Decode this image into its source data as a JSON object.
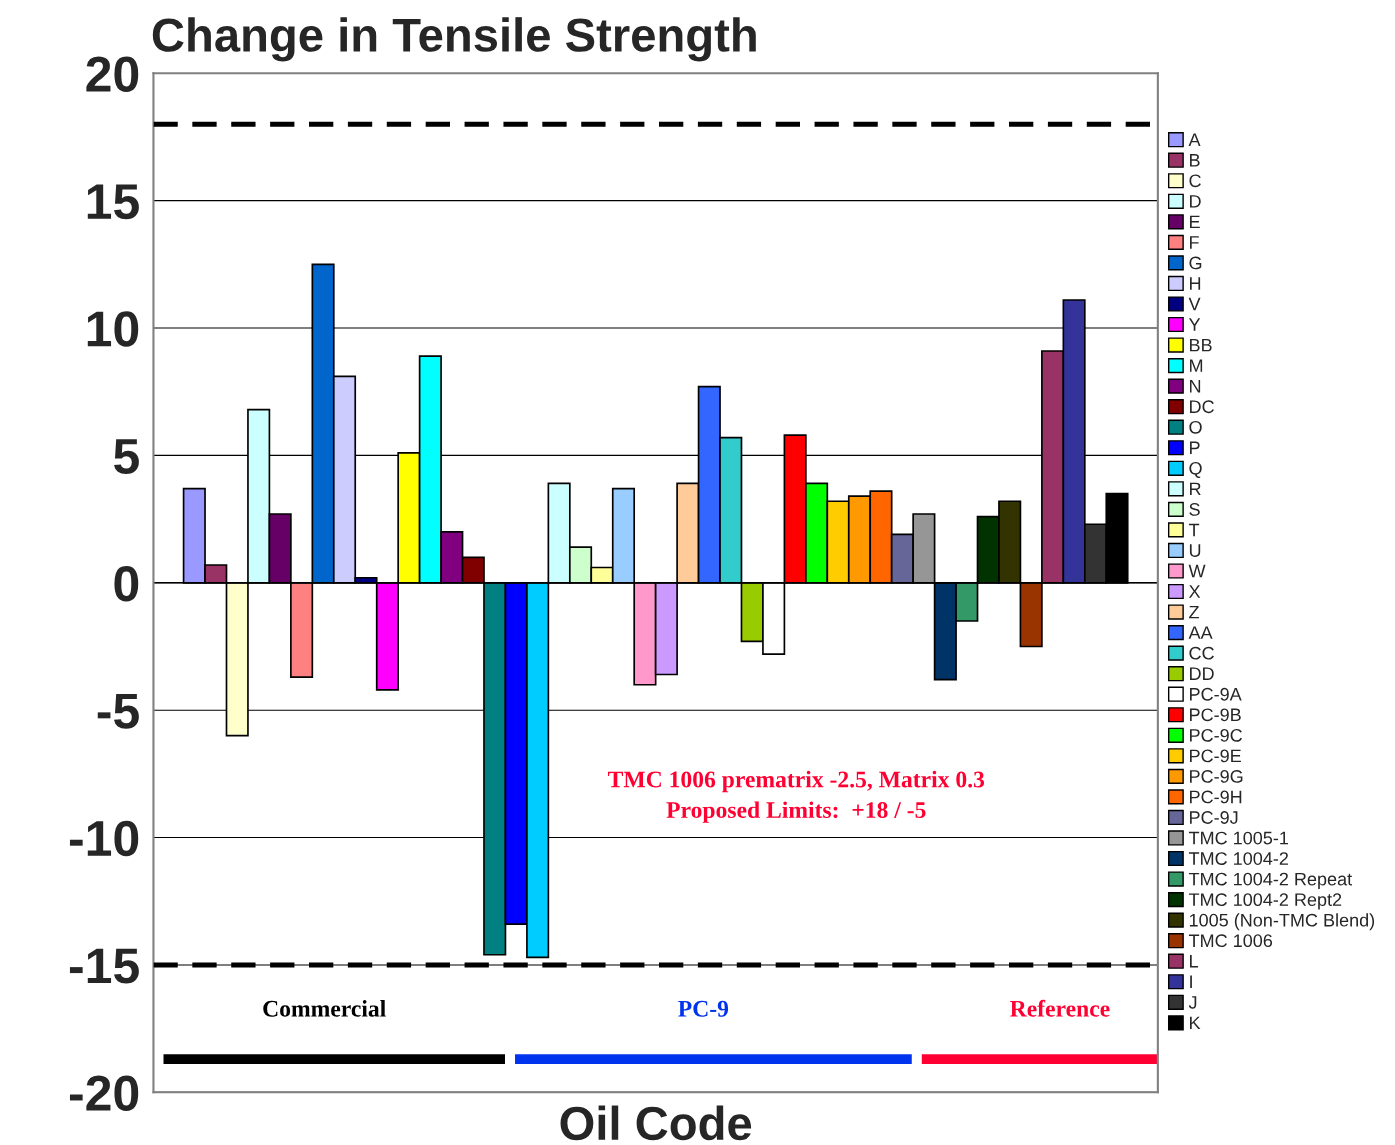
{
  "chart_data": {
    "type": "bar",
    "title": "Change in Tensile Strength",
    "xlabel": "Oil Code",
    "categories": [
      null
    ],
    "series": [
      {
        "name": "A",
        "color": "#9999ff",
        "values": [
          3.7
        ]
      },
      {
        "name": "B",
        "color": "#993366",
        "values": [
          0.7
        ]
      },
      {
        "name": "C",
        "color": "#ffffcc",
        "values": [
          -6.0
        ]
      },
      {
        "name": "D",
        "color": "#ccffff",
        "values": [
          6.8
        ]
      },
      {
        "name": "E",
        "color": "#660066",
        "values": [
          2.7
        ]
      },
      {
        "name": "F",
        "color": "#ff8080",
        "values": [
          -3.7
        ]
      },
      {
        "name": "G",
        "color": "#0066cc",
        "values": [
          12.5
        ]
      },
      {
        "name": "H",
        "color": "#ccccff",
        "values": [
          8.1
        ]
      },
      {
        "name": "V",
        "color": "#000080",
        "values": [
          0.2
        ]
      },
      {
        "name": "Y",
        "color": "#ff00ff",
        "values": [
          -4.2
        ]
      },
      {
        "name": "BB",
        "color": "#ffff00",
        "values": [
          5.1
        ]
      },
      {
        "name": "M",
        "color": "#00ffff",
        "values": [
          8.9
        ]
      },
      {
        "name": "N",
        "color": "#800080",
        "values": [
          2.0
        ]
      },
      {
        "name": "DC",
        "color": "#800000",
        "values": [
          1.0
        ]
      },
      {
        "name": "O",
        "color": "#008080",
        "values": [
          -14.6
        ]
      },
      {
        "name": "P",
        "color": "#0000ff",
        "values": [
          -13.4
        ]
      },
      {
        "name": "Q",
        "color": "#00ccff",
        "values": [
          -14.7
        ]
      },
      {
        "name": "R",
        "color": "#ccffff",
        "values": [
          3.9
        ]
      },
      {
        "name": "S",
        "color": "#ccffcc",
        "values": [
          1.4
        ]
      },
      {
        "name": "T",
        "color": "#ffff99",
        "values": [
          0.6
        ]
      },
      {
        "name": "U",
        "color": "#99ccff",
        "values": [
          3.7
        ]
      },
      {
        "name": "W",
        "color": "#ff99cc",
        "values": [
          -4.0
        ]
      },
      {
        "name": "X",
        "color": "#cc99ff",
        "values": [
          -3.6
        ]
      },
      {
        "name": "Z",
        "color": "#ffcc99",
        "values": [
          3.9
        ]
      },
      {
        "name": "AA",
        "color": "#3366ff",
        "values": [
          7.7
        ]
      },
      {
        "name": "CC",
        "color": "#33cccc",
        "values": [
          5.7
        ]
      },
      {
        "name": "DD",
        "color": "#99cc00",
        "values": [
          -2.3
        ]
      },
      {
        "name": "PC-9A",
        "color": "#ffffff",
        "values": [
          -2.8
        ]
      },
      {
        "name": "PC-9B",
        "color": "#ff0000",
        "values": [
          5.8
        ]
      },
      {
        "name": "PC-9C",
        "color": "#00ff00",
        "values": [
          3.9
        ]
      },
      {
        "name": "PC-9E",
        "color": "#ffcc00",
        "values": [
          3.2
        ]
      },
      {
        "name": "PC-9G",
        "color": "#ff9900",
        "values": [
          3.4
        ]
      },
      {
        "name": "PC-9H",
        "color": "#ff6600",
        "values": [
          3.6
        ]
      },
      {
        "name": "PC-9J",
        "color": "#666699",
        "values": [
          1.9
        ]
      },
      {
        "name": "TMC 1005-1",
        "color": "#969696",
        "values": [
          2.7
        ]
      },
      {
        "name": "TMC 1004-2",
        "color": "#003366",
        "values": [
          -3.8
        ]
      },
      {
        "name": "TMC 1004-2 Repeat",
        "color": "#339966",
        "values": [
          -1.5
        ]
      },
      {
        "name": "TMC 1004-2 Rept2",
        "color": "#003300",
        "values": [
          2.6
        ]
      },
      {
        "name": "1005 (Non-TMC Blend)",
        "color": "#333300",
        "values": [
          3.2
        ]
      },
      {
        "name": "TMC 1006",
        "color": "#993300",
        "values": [
          -2.5
        ]
      },
      {
        "name": "L",
        "color": "#993366",
        "values": [
          9.1
        ]
      },
      {
        "name": "I",
        "color": "#333399",
        "values": [
          11.1
        ]
      },
      {
        "name": "J",
        "color": "#333333",
        "values": [
          2.3
        ]
      },
      {
        "name": "K",
        "color": "#000000",
        "values": [
          3.5
        ]
      }
    ],
    "ylim": [
      -20,
      20
    ],
    "yticks": [
      -20,
      -15,
      -10,
      -5,
      0,
      5,
      10,
      15,
      20
    ],
    "grid": "y",
    "legend": "right",
    "ref_lines": [
      {
        "axis": "y",
        "value": 18,
        "color": "#000000",
        "line_style": "dashed"
      },
      {
        "axis": "y",
        "value": -15,
        "color": "#000000",
        "line_style": "dashed"
      }
    ],
    "annotations": [
      "TMC 1006 prematrix -2.5, Matrix 0.3",
      "Proposed Limits:  +18 / -5",
      "Commercial",
      "PC-9",
      "Reference"
    ]
  }
}
